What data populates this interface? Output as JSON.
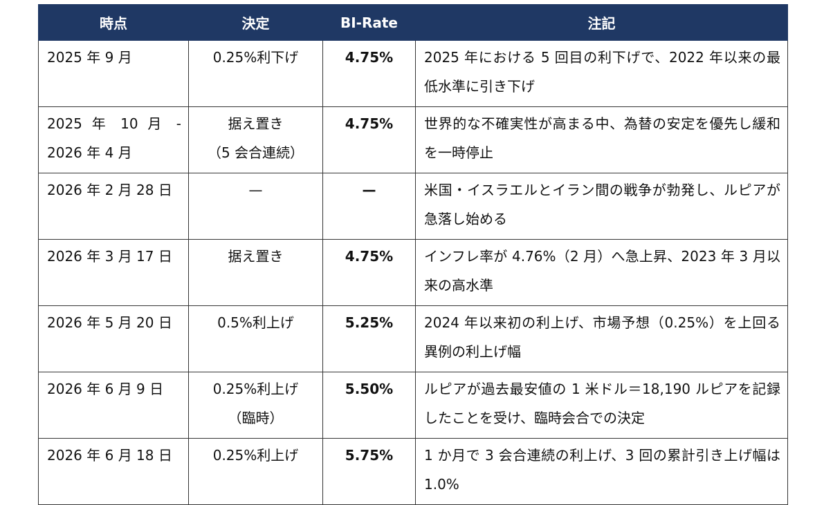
{
  "table": {
    "headers": [
      "時点",
      "決定",
      "BI-Rate",
      "注記"
    ],
    "rows": [
      [
        "2025 年 9 月",
        "0.25%利下げ",
        "4.75%",
        "2025 年における 5 回目の利下げで、2022 年以来の最低水準に引き下げ"
      ],
      [
        "2025 年 10 月 - 2026 年 4 月",
        "据え置き\n（5 会合連続）",
        "4.75%",
        "世界的な不確実性が高まる中、為替の安定を優先し緩和を一時停止"
      ],
      [
        "2026 年 2 月 28 日",
        "—",
        "—",
        "米国・イスラエルとイラン間の戦争が勃発し、ルピアが急落し始める"
      ],
      [
        "2026 年 3 月 17 日",
        "据え置き",
        "4.75%",
        "インフレ率が 4.76%（2 月）へ急上昇、2023 年 3 月以来の高水準"
      ],
      [
        "2026 年 5 月 20 日",
        "0.5%利上げ",
        "5.25%",
        "2024 年以来初の利上げ、市場予想（0.25%）を上回る異例の利上げ幅"
      ],
      [
        "2026 年 6 月 9 日",
        "0.25%利上げ\n（臨時）",
        "5.50%",
        "ルピアが過去最安値の 1 米ドル＝18,190 ルピアを記録したことを受け、臨時会合での決定"
      ],
      [
        "2026 年 6 月 18 日",
        "0.25%利上げ",
        "5.75%",
        "1 か月で 3 会合連続の利上げ、3 回の累計引き上げ幅は 1.0%"
      ]
    ]
  }
}
